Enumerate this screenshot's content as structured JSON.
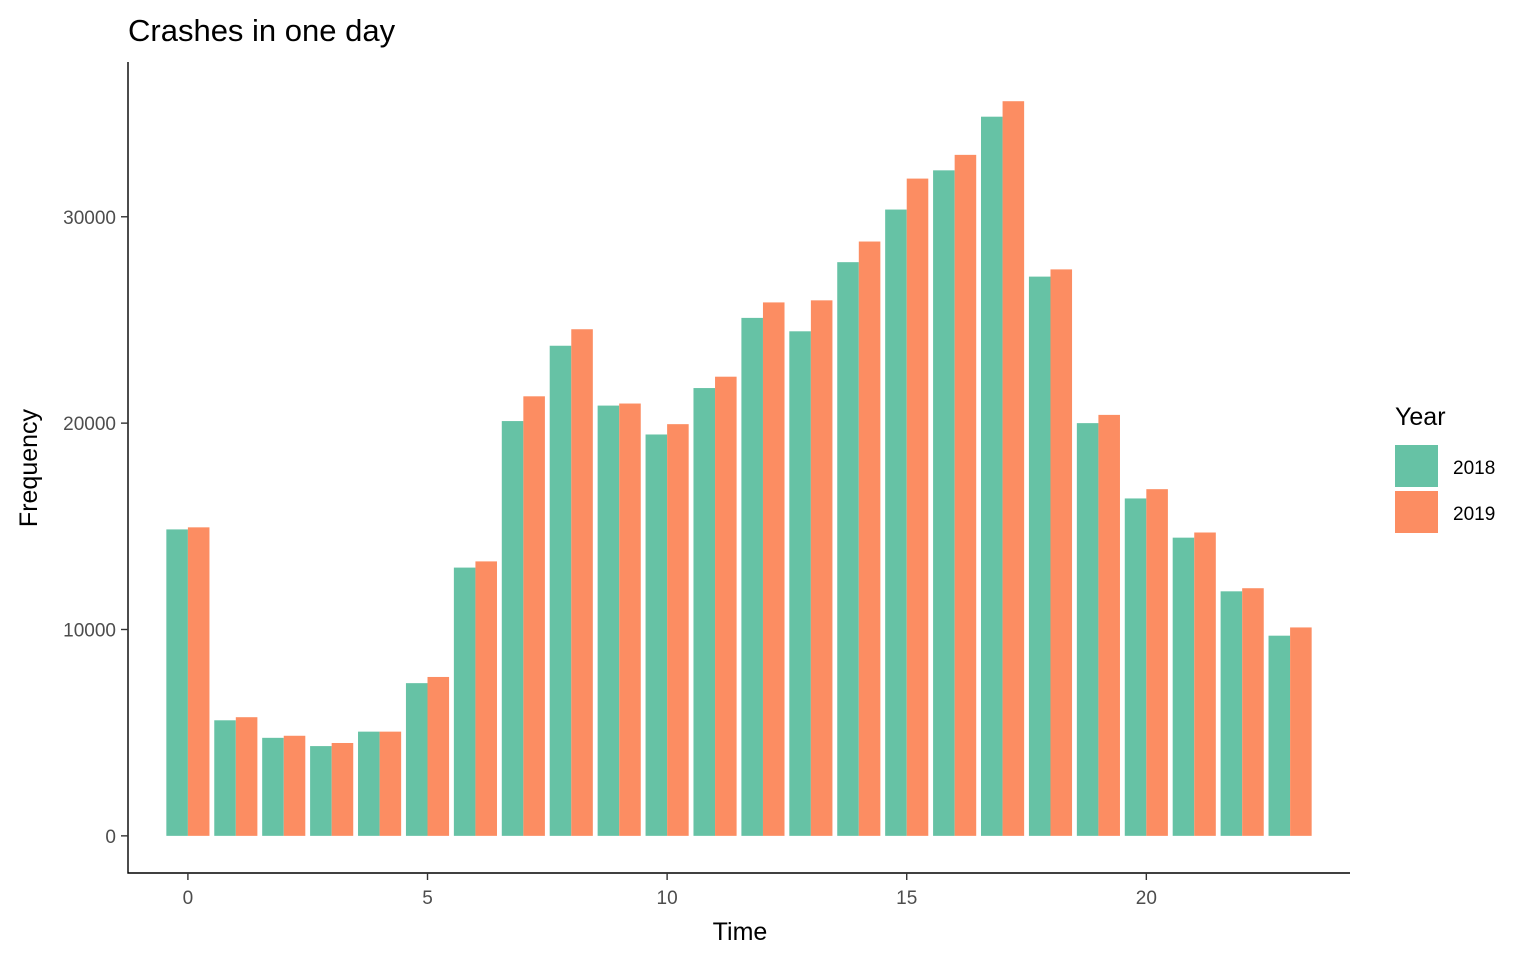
{
  "chart_data": {
    "type": "bar",
    "title": "Crashes in one day",
    "xlabel": "Time",
    "ylabel": "Frequency",
    "x": [
      0,
      1,
      2,
      3,
      4,
      5,
      6,
      7,
      8,
      9,
      10,
      11,
      12,
      13,
      14,
      15,
      16,
      17,
      18,
      19,
      20,
      21,
      22,
      23
    ],
    "xticks": [
      0,
      5,
      10,
      15,
      20
    ],
    "xlim": [
      -1.25,
      24.25
    ],
    "yticks": [
      0,
      10000,
      20000,
      30000
    ],
    "ylim": [
      -1800,
      37500
    ],
    "grid": false,
    "legend": {
      "title": "Year",
      "position": "right"
    },
    "series": [
      {
        "name": "2018",
        "color": "#66c2a5",
        "values": [
          14850,
          5600,
          4750,
          4350,
          5050,
          7400,
          13000,
          20100,
          23750,
          20850,
          19450,
          21700,
          25100,
          24450,
          27800,
          30350,
          32250,
          34850,
          27100,
          20000,
          16350,
          14450,
          11850,
          9700
        ]
      },
      {
        "name": "2019",
        "color": "#fc8d62",
        "values": [
          14950,
          5750,
          4850,
          4500,
          5050,
          7700,
          13300,
          21300,
          24550,
          20950,
          19950,
          22250,
          25850,
          25950,
          28800,
          31850,
          33000,
          35600,
          27450,
          20400,
          16800,
          14700,
          12000,
          10100
        ]
      }
    ]
  }
}
